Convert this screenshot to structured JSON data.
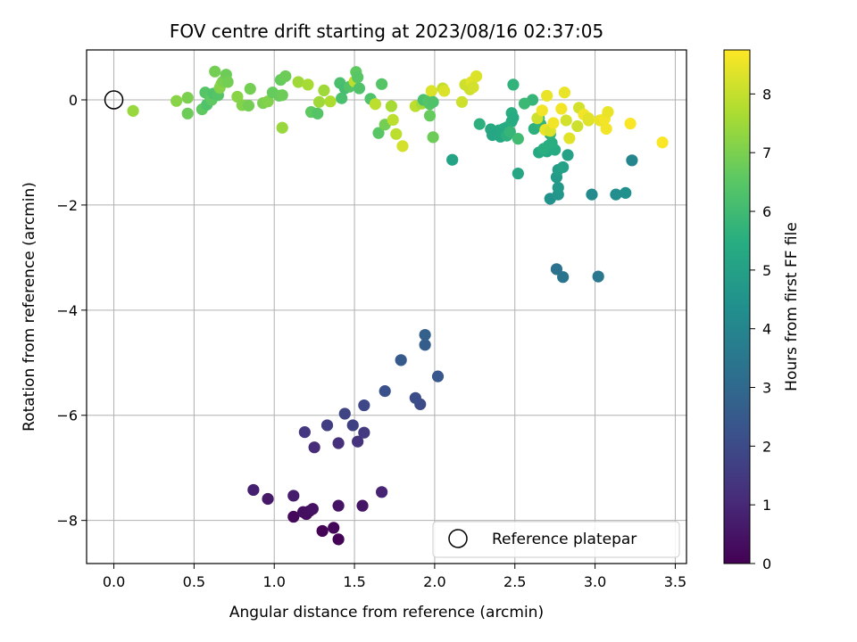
{
  "chart_data": {
    "type": "scatter",
    "title": "FOV centre drift starting at 2023/08/16 02:37:05",
    "xlabel": "Angular distance from reference (arcmin)",
    "ylabel": "Rotation from reference (arcmin)",
    "xlim": [
      -0.17,
      3.57
    ],
    "ylim": [
      -8.82,
      0.95
    ],
    "x_ticks": [
      "0.0",
      "0.5",
      "1.0",
      "1.5",
      "2.0",
      "2.5",
      "3.0",
      "3.5"
    ],
    "x_tick_values": [
      0,
      0.5,
      1.0,
      1.5,
      2.0,
      2.5,
      3.0,
      3.5
    ],
    "y_ticks": [
      "0",
      "−2",
      "−4",
      "−6",
      "−8"
    ],
    "y_tick_values": [
      0,
      -2,
      -4,
      -6,
      -8
    ],
    "grid": true,
    "colormap": "viridis",
    "colorbar": {
      "label": "Hours from first FF file",
      "min": 0,
      "max": 8.75,
      "ticks": [
        "0",
        "1",
        "2",
        "3",
        "4",
        "5",
        "6",
        "7",
        "8"
      ],
      "tick_values": [
        0,
        1,
        2,
        3,
        4,
        5,
        6,
        7,
        8
      ]
    },
    "legend": {
      "position": "bottom-right",
      "entries": [
        "Reference platepar"
      ]
    },
    "reference_marker": {
      "x": 0,
      "y": 0,
      "label": "Reference platepar"
    },
    "points": [
      {
        "x": 1.4,
        "y": -8.36,
        "t": 0.05
      },
      {
        "x": 1.3,
        "y": -8.2,
        "t": 0.1
      },
      {
        "x": 1.37,
        "y": -8.14,
        "t": 0.15
      },
      {
        "x": 1.12,
        "y": -7.93,
        "t": 0.2
      },
      {
        "x": 1.2,
        "y": -7.88,
        "t": 0.25
      },
      {
        "x": 1.22,
        "y": -7.82,
        "t": 0.3
      },
      {
        "x": 1.18,
        "y": -7.84,
        "t": 0.35
      },
      {
        "x": 1.24,
        "y": -7.78,
        "t": 0.4
      },
      {
        "x": 1.4,
        "y": -7.72,
        "t": 0.45
      },
      {
        "x": 1.55,
        "y": -7.72,
        "t": 0.5
      },
      {
        "x": 0.96,
        "y": -7.59,
        "t": 0.6
      },
      {
        "x": 1.12,
        "y": -7.53,
        "t": 0.7
      },
      {
        "x": 0.87,
        "y": -7.42,
        "t": 0.8
      },
      {
        "x": 1.67,
        "y": -7.46,
        "t": 0.9
      },
      {
        "x": 1.25,
        "y": -6.61,
        "t": 1.1
      },
      {
        "x": 1.4,
        "y": -6.53,
        "t": 1.2
      },
      {
        "x": 1.52,
        "y": -6.5,
        "t": 1.3
      },
      {
        "x": 1.19,
        "y": -6.32,
        "t": 1.4
      },
      {
        "x": 1.56,
        "y": -6.33,
        "t": 1.5
      },
      {
        "x": 1.33,
        "y": -6.19,
        "t": 1.6
      },
      {
        "x": 1.49,
        "y": -6.19,
        "t": 1.7
      },
      {
        "x": 1.44,
        "y": -5.97,
        "t": 1.8
      },
      {
        "x": 1.56,
        "y": -5.81,
        "t": 1.9
      },
      {
        "x": 1.91,
        "y": -5.79,
        "t": 2.0
      },
      {
        "x": 1.88,
        "y": -5.67,
        "t": 2.1
      },
      {
        "x": 1.69,
        "y": -5.54,
        "t": 2.2
      },
      {
        "x": 2.02,
        "y": -5.26,
        "t": 2.4
      },
      {
        "x": 1.79,
        "y": -4.95,
        "t": 2.5
      },
      {
        "x": 1.94,
        "y": -4.66,
        "t": 2.6
      },
      {
        "x": 1.94,
        "y": -4.47,
        "t": 2.7
      },
      {
        "x": 2.76,
        "y": -3.22,
        "t": 3.3
      },
      {
        "x": 2.8,
        "y": -3.37,
        "t": 3.4
      },
      {
        "x": 3.02,
        "y": -3.36,
        "t": 3.5
      },
      {
        "x": 3.23,
        "y": -1.15,
        "t": 4.0
      },
      {
        "x": 2.98,
        "y": -1.8,
        "t": 4.2
      },
      {
        "x": 3.13,
        "y": -1.8,
        "t": 4.3
      },
      {
        "x": 3.19,
        "y": -1.77,
        "t": 4.4
      },
      {
        "x": 2.72,
        "y": -1.88,
        "t": 4.5
      },
      {
        "x": 2.77,
        "y": -1.8,
        "t": 4.6
      },
      {
        "x": 2.77,
        "y": -1.67,
        "t": 4.7
      },
      {
        "x": 2.76,
        "y": -1.47,
        "t": 4.8
      },
      {
        "x": 2.77,
        "y": -1.33,
        "t": 4.9
      },
      {
        "x": 2.83,
        "y": -1.05,
        "t": 5.0
      },
      {
        "x": 2.8,
        "y": -1.28,
        "t": 5.0
      },
      {
        "x": 2.11,
        "y": -1.14,
        "t": 5.1
      },
      {
        "x": 2.52,
        "y": -1.4,
        "t": 5.2
      },
      {
        "x": 2.65,
        "y": -1.0,
        "t": 5.3
      },
      {
        "x": 2.7,
        "y": -0.98,
        "t": 5.3
      },
      {
        "x": 2.75,
        "y": -0.95,
        "t": 5.4
      },
      {
        "x": 2.71,
        "y": -0.87,
        "t": 5.4
      },
      {
        "x": 2.68,
        "y": -0.93,
        "t": 5.5
      },
      {
        "x": 2.73,
        "y": -0.82,
        "t": 5.5
      },
      {
        "x": 2.72,
        "y": -0.65,
        "t": 5.6
      },
      {
        "x": 2.62,
        "y": -0.55,
        "t": 5.6
      },
      {
        "x": 2.66,
        "y": -0.46,
        "t": 5.7
      },
      {
        "x": 2.48,
        "y": -0.25,
        "t": 5.5
      },
      {
        "x": 2.49,
        "y": -0.34,
        "t": 5.4
      },
      {
        "x": 2.48,
        "y": -0.41,
        "t": 5.4
      },
      {
        "x": 2.45,
        "y": -0.52,
        "t": 5.5
      },
      {
        "x": 2.43,
        "y": -0.55,
        "t": 5.4
      },
      {
        "x": 2.4,
        "y": -0.58,
        "t": 5.4
      },
      {
        "x": 2.39,
        "y": -0.62,
        "t": 5.3
      },
      {
        "x": 2.35,
        "y": -0.56,
        "t": 5.3
      },
      {
        "x": 2.36,
        "y": -0.67,
        "t": 5.2
      },
      {
        "x": 2.41,
        "y": -0.7,
        "t": 5.3
      },
      {
        "x": 2.45,
        "y": -0.68,
        "t": 5.6
      },
      {
        "x": 2.47,
        "y": -0.61,
        "t": 5.8
      },
      {
        "x": 2.52,
        "y": -0.74,
        "t": 6.0
      },
      {
        "x": 2.28,
        "y": -0.46,
        "t": 5.6
      },
      {
        "x": 2.49,
        "y": 0.29,
        "t": 5.7
      },
      {
        "x": 2.61,
        "y": 0.0,
        "t": 5.8
      },
      {
        "x": 2.56,
        "y": -0.07,
        "t": 5.9
      },
      {
        "x": 2.65,
        "y": -0.35,
        "t": 5.9
      },
      {
        "x": 0.12,
        "y": -0.21,
        "t": 7.4
      },
      {
        "x": 0.39,
        "y": -0.02,
        "t": 7.2
      },
      {
        "x": 0.46,
        "y": 0.04,
        "t": 7.0
      },
      {
        "x": 0.46,
        "y": -0.26,
        "t": 6.8
      },
      {
        "x": 0.55,
        "y": -0.18,
        "t": 6.6
      },
      {
        "x": 0.57,
        "y": 0.14,
        "t": 6.4
      },
      {
        "x": 0.58,
        "y": -0.09,
        "t": 6.3
      },
      {
        "x": 0.6,
        "y": 0.06,
        "t": 6.5
      },
      {
        "x": 0.61,
        "y": 0.0,
        "t": 6.6
      },
      {
        "x": 0.62,
        "y": 0.12,
        "t": 6.3
      },
      {
        "x": 0.63,
        "y": 0.54,
        "t": 6.9
      },
      {
        "x": 0.65,
        "y": 0.09,
        "t": 6.4
      },
      {
        "x": 0.66,
        "y": 0.23,
        "t": 7.1
      },
      {
        "x": 0.67,
        "y": 0.3,
        "t": 7.2
      },
      {
        "x": 0.68,
        "y": 0.35,
        "t": 7.0
      },
      {
        "x": 0.7,
        "y": 0.48,
        "t": 6.8
      },
      {
        "x": 0.71,
        "y": 0.34,
        "t": 6.9
      },
      {
        "x": 0.77,
        "y": 0.06,
        "t": 7.2
      },
      {
        "x": 0.8,
        "y": -0.1,
        "t": 7.1
      },
      {
        "x": 0.84,
        "y": -0.11,
        "t": 6.9
      },
      {
        "x": 0.85,
        "y": 0.21,
        "t": 6.9
      },
      {
        "x": 0.93,
        "y": -0.06,
        "t": 7.0
      },
      {
        "x": 0.96,
        "y": -0.03,
        "t": 7.1
      },
      {
        "x": 0.99,
        "y": 0.14,
        "t": 6.7
      },
      {
        "x": 1.03,
        "y": 0.08,
        "t": 6.7
      },
      {
        "x": 1.04,
        "y": 0.38,
        "t": 6.7
      },
      {
        "x": 1.05,
        "y": 0.09,
        "t": 6.8
      },
      {
        "x": 1.07,
        "y": 0.45,
        "t": 6.8
      },
      {
        "x": 1.05,
        "y": -0.53,
        "t": 7.4
      },
      {
        "x": 1.15,
        "y": 0.34,
        "t": 7.5
      },
      {
        "x": 1.21,
        "y": 0.29,
        "t": 7.6
      },
      {
        "x": 1.23,
        "y": -0.23,
        "t": 6.6
      },
      {
        "x": 1.27,
        "y": -0.26,
        "t": 6.4
      },
      {
        "x": 1.28,
        "y": -0.04,
        "t": 7.5
      },
      {
        "x": 1.31,
        "y": 0.18,
        "t": 7.5
      },
      {
        "x": 1.35,
        "y": -0.03,
        "t": 7.7
      },
      {
        "x": 1.41,
        "y": 0.32,
        "t": 6.2
      },
      {
        "x": 1.42,
        "y": 0.03,
        "t": 6.2
      },
      {
        "x": 1.44,
        "y": 0.22,
        "t": 6.1
      },
      {
        "x": 1.47,
        "y": 0.25,
        "t": 6.4
      },
      {
        "x": 1.5,
        "y": 0.35,
        "t": 7.9
      },
      {
        "x": 1.51,
        "y": 0.53,
        "t": 6.6
      },
      {
        "x": 1.52,
        "y": 0.43,
        "t": 6.5
      },
      {
        "x": 1.53,
        "y": 0.22,
        "t": 6.3
      },
      {
        "x": 1.6,
        "y": 0.02,
        "t": 6.3
      },
      {
        "x": 1.63,
        "y": -0.08,
        "t": 7.9
      },
      {
        "x": 1.65,
        "y": -0.63,
        "t": 6.5
      },
      {
        "x": 1.67,
        "y": 0.3,
        "t": 6.4
      },
      {
        "x": 1.69,
        "y": -0.47,
        "t": 6.9
      },
      {
        "x": 1.73,
        "y": -0.12,
        "t": 7.6
      },
      {
        "x": 1.74,
        "y": -0.38,
        "t": 7.9
      },
      {
        "x": 1.76,
        "y": -0.65,
        "t": 7.9
      },
      {
        "x": 1.8,
        "y": -0.88,
        "t": 8.2
      },
      {
        "x": 1.88,
        "y": -0.12,
        "t": 7.9
      },
      {
        "x": 1.92,
        "y": -0.07,
        "t": 7.6
      },
      {
        "x": 1.93,
        "y": 0.0,
        "t": 6.2
      },
      {
        "x": 1.96,
        "y": -0.02,
        "t": 6.4
      },
      {
        "x": 1.97,
        "y": -0.08,
        "t": 6.4
      },
      {
        "x": 1.97,
        "y": -0.3,
        "t": 6.7
      },
      {
        "x": 1.98,
        "y": 0.17,
        "t": 8.3
      },
      {
        "x": 1.99,
        "y": -0.71,
        "t": 6.8
      },
      {
        "x": 1.99,
        "y": -0.04,
        "t": 6.3
      },
      {
        "x": 2.05,
        "y": 0.22,
        "t": 8.0
      },
      {
        "x": 2.06,
        "y": 0.17,
        "t": 8.3
      },
      {
        "x": 2.17,
        "y": -0.04,
        "t": 8.1
      },
      {
        "x": 2.19,
        "y": 0.29,
        "t": 8.1
      },
      {
        "x": 2.22,
        "y": 0.2,
        "t": 8.1
      },
      {
        "x": 2.23,
        "y": 0.34,
        "t": 8.4
      },
      {
        "x": 2.24,
        "y": 0.24,
        "t": 8.2
      },
      {
        "x": 2.26,
        "y": 0.45,
        "t": 8.3
      },
      {
        "x": 2.64,
        "y": -0.35,
        "t": 8.1
      },
      {
        "x": 2.67,
        "y": -0.2,
        "t": 8.6
      },
      {
        "x": 2.69,
        "y": -0.57,
        "t": 8.5
      },
      {
        "x": 2.7,
        "y": 0.08,
        "t": 8.5
      },
      {
        "x": 2.72,
        "y": -0.59,
        "t": 8.3
      },
      {
        "x": 2.74,
        "y": -0.44,
        "t": 8.6
      },
      {
        "x": 2.79,
        "y": -0.17,
        "t": 8.6
      },
      {
        "x": 2.81,
        "y": 0.14,
        "t": 8.5
      },
      {
        "x": 2.82,
        "y": -0.39,
        "t": 8.2
      },
      {
        "x": 2.84,
        "y": -0.73,
        "t": 8.4
      },
      {
        "x": 2.89,
        "y": -0.5,
        "t": 8.1
      },
      {
        "x": 2.9,
        "y": -0.15,
        "t": 8.2
      },
      {
        "x": 2.93,
        "y": -0.28,
        "t": 8.6
      },
      {
        "x": 2.96,
        "y": -0.39,
        "t": 8.3
      },
      {
        "x": 2.96,
        "y": -0.35,
        "t": 8.4
      },
      {
        "x": 3.03,
        "y": -0.39,
        "t": 8.5
      },
      {
        "x": 3.06,
        "y": -0.36,
        "t": 8.6
      },
      {
        "x": 3.07,
        "y": -0.55,
        "t": 8.6
      },
      {
        "x": 3.08,
        "y": -0.23,
        "t": 8.5
      },
      {
        "x": 3.22,
        "y": -0.45,
        "t": 8.7
      },
      {
        "x": 3.42,
        "y": -0.81,
        "t": 8.7
      }
    ]
  }
}
